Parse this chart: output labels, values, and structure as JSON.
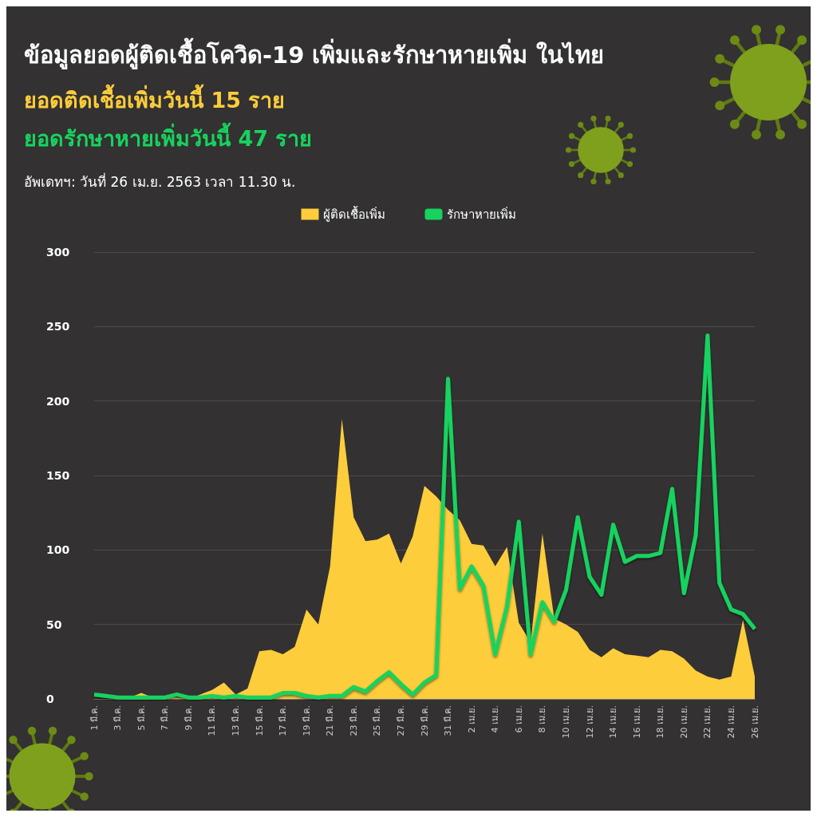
{
  "chart_data": {
    "type": "area",
    "title": "ข้อมูลยอดผู้ติดเชื้อโควิด-19 เพิ่มและรักษาหายเพิ่ม ในไทย",
    "subtitle": "ยอดติดเชื้อเพิ่มวันนี้ 15 ราย",
    "annotations": [
      "ยอดรักษาหายเพิ่มวันนี้ 47 ราย",
      "อัพเดทฯ: วันที่ 26 เม.ย. 2563 เวลา 11.30 น."
    ],
    "categories": [
      "1 มี.ค.",
      null,
      "3 มี.ค.",
      null,
      "5 มี.ค.",
      null,
      "7 มี.ค.",
      null,
      "9 มี.ค.",
      null,
      "11 มี.ค.",
      null,
      "13 มี.ค.",
      null,
      "15 มี.ค.",
      null,
      "17 มี.ค.",
      null,
      "19 มี.ค.",
      null,
      "21 มี.ค.",
      null,
      "23 มี.ค.",
      null,
      "25 มี.ค.",
      null,
      "27 มี.ค.",
      null,
      "29 มี.ค.",
      null,
      "31 มี.ค.",
      null,
      "2 เม.ย.",
      null,
      "4 เม.ย.",
      null,
      "6 เม.ย.",
      null,
      "8 เม.ย.",
      null,
      "10 เม.ย.",
      null,
      "12 เม.ย.",
      null,
      "14 เม.ย.",
      null,
      "16 เม.ย.",
      null,
      "18 เม.ย.",
      null,
      "20 เม.ย.",
      null,
      "22 เม.ย.",
      null,
      "24 เม.ย.",
      null,
      "26 เม.ย."
    ],
    "series": [
      {
        "name": "ผู้ติดเชื้อเพิ่ม",
        "color": "#fdcd3b",
        "values": [
          0,
          0,
          0,
          1,
          4,
          1,
          1,
          1,
          0,
          3,
          6,
          11,
          3,
          7,
          32,
          33,
          30,
          35,
          60,
          50,
          89,
          188,
          122,
          106,
          107,
          111,
          91,
          109,
          143,
          136,
          127,
          120,
          104,
          103,
          89,
          102,
          51,
          38,
          111,
          54,
          50,
          45,
          33,
          28,
          34,
          30,
          29,
          28,
          33,
          32,
          27,
          19,
          15,
          13,
          15,
          53,
          15
        ]
      },
      {
        "name": "รักษาหายเพิ่ม",
        "type": "line",
        "color": "#17d35e",
        "values": [
          3,
          2,
          1,
          1,
          1,
          1,
          1,
          3,
          1,
          1,
          2,
          1,
          2,
          1,
          1,
          1,
          4,
          4,
          2,
          1,
          2,
          2,
          8,
          5,
          12,
          18,
          10,
          3,
          11,
          16,
          215,
          74,
          89,
          76,
          30,
          62,
          119,
          30,
          65,
          52,
          73,
          122,
          82,
          70,
          117,
          92,
          96,
          96,
          98,
          141,
          71,
          110,
          244,
          78,
          60,
          57,
          47
        ]
      }
    ],
    "ylim": [
      0,
      300
    ],
    "yticks": [
      0,
      50,
      100,
      150,
      200,
      250,
      300
    ],
    "grid": "y",
    "legend": "top",
    "marker": "none",
    "line_style": "solid"
  }
}
